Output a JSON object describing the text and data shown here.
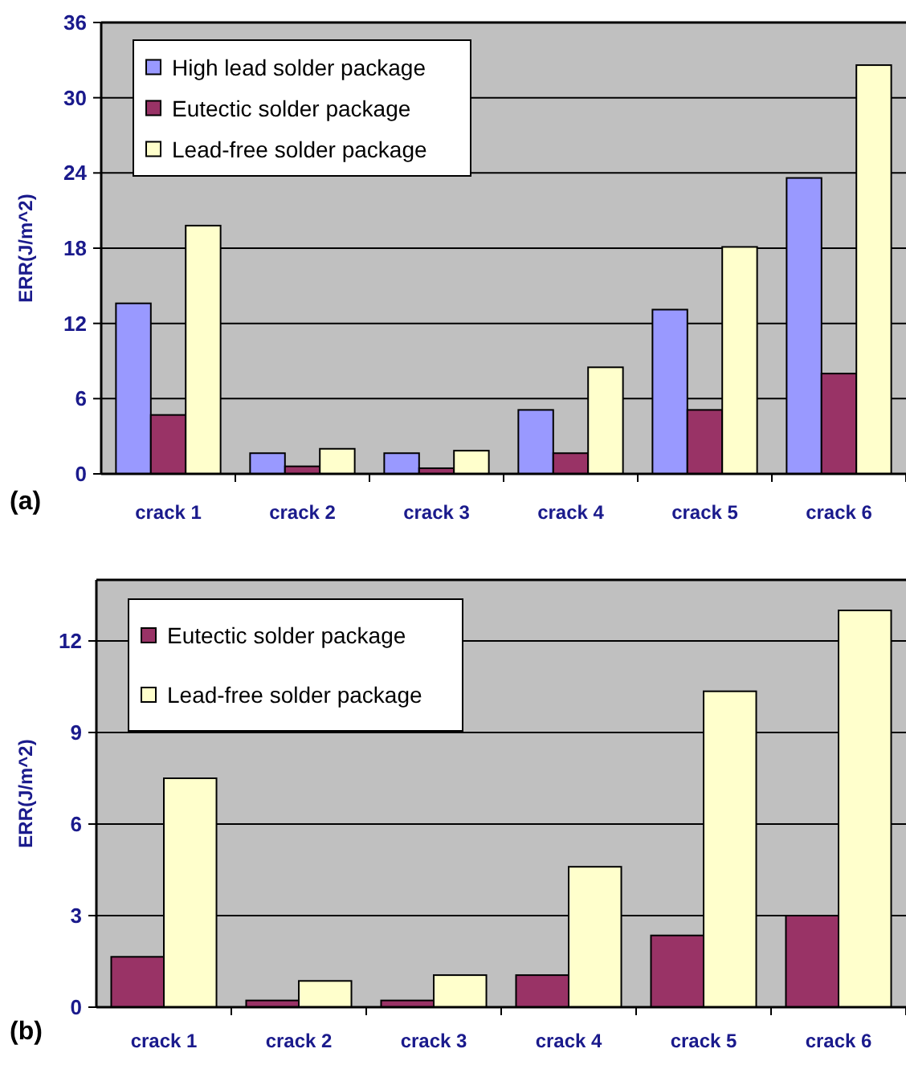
{
  "chart_data": [
    {
      "type": "bar",
      "ylabel": "ERR(J/m^2)",
      "categories": [
        "crack 1",
        "crack 2",
        "crack 3",
        "crack 4",
        "crack 5",
        "crack 6"
      ],
      "series": [
        {
          "name": "High lead solder package",
          "color": "#9999ff",
          "values": [
            13.6,
            1.65,
            1.65,
            5.1,
            13.1,
            23.6
          ]
        },
        {
          "name": "Eutectic solder package",
          "color": "#993366",
          "values": [
            4.7,
            0.6,
            0.45,
            1.65,
            5.1,
            8.0
          ]
        },
        {
          "name": "Lead-free solder package",
          "color": "#ffffcc",
          "values": [
            19.8,
            2.0,
            1.85,
            8.5,
            18.1,
            32.6
          ]
        }
      ],
      "ylim": [
        0,
        36
      ],
      "yticks": [
        0,
        6,
        12,
        18,
        24,
        30,
        36
      ],
      "grid": "y",
      "legend": "top left",
      "annotations": [
        "(a)"
      ]
    },
    {
      "type": "bar",
      "ylabel": "ERR(J/m^2)",
      "categories": [
        "crack 1",
        "crack 2",
        "crack 3",
        "crack 4",
        "crack 5",
        "crack 6"
      ],
      "series": [
        {
          "name": "Eutectic solder package",
          "color": "#993366",
          "values": [
            1.65,
            0.22,
            0.22,
            1.05,
            2.35,
            3.0
          ]
        },
        {
          "name": "Lead-free solder package",
          "color": "#ffffcc",
          "values": [
            7.5,
            0.86,
            1.05,
            4.6,
            10.35,
            13.0
          ]
        }
      ],
      "ylim": [
        0,
        14
      ],
      "yticks": [
        0,
        3,
        6,
        9,
        12
      ],
      "grid": "y",
      "legend": "top left",
      "annotations": [
        "(b)"
      ]
    }
  ]
}
